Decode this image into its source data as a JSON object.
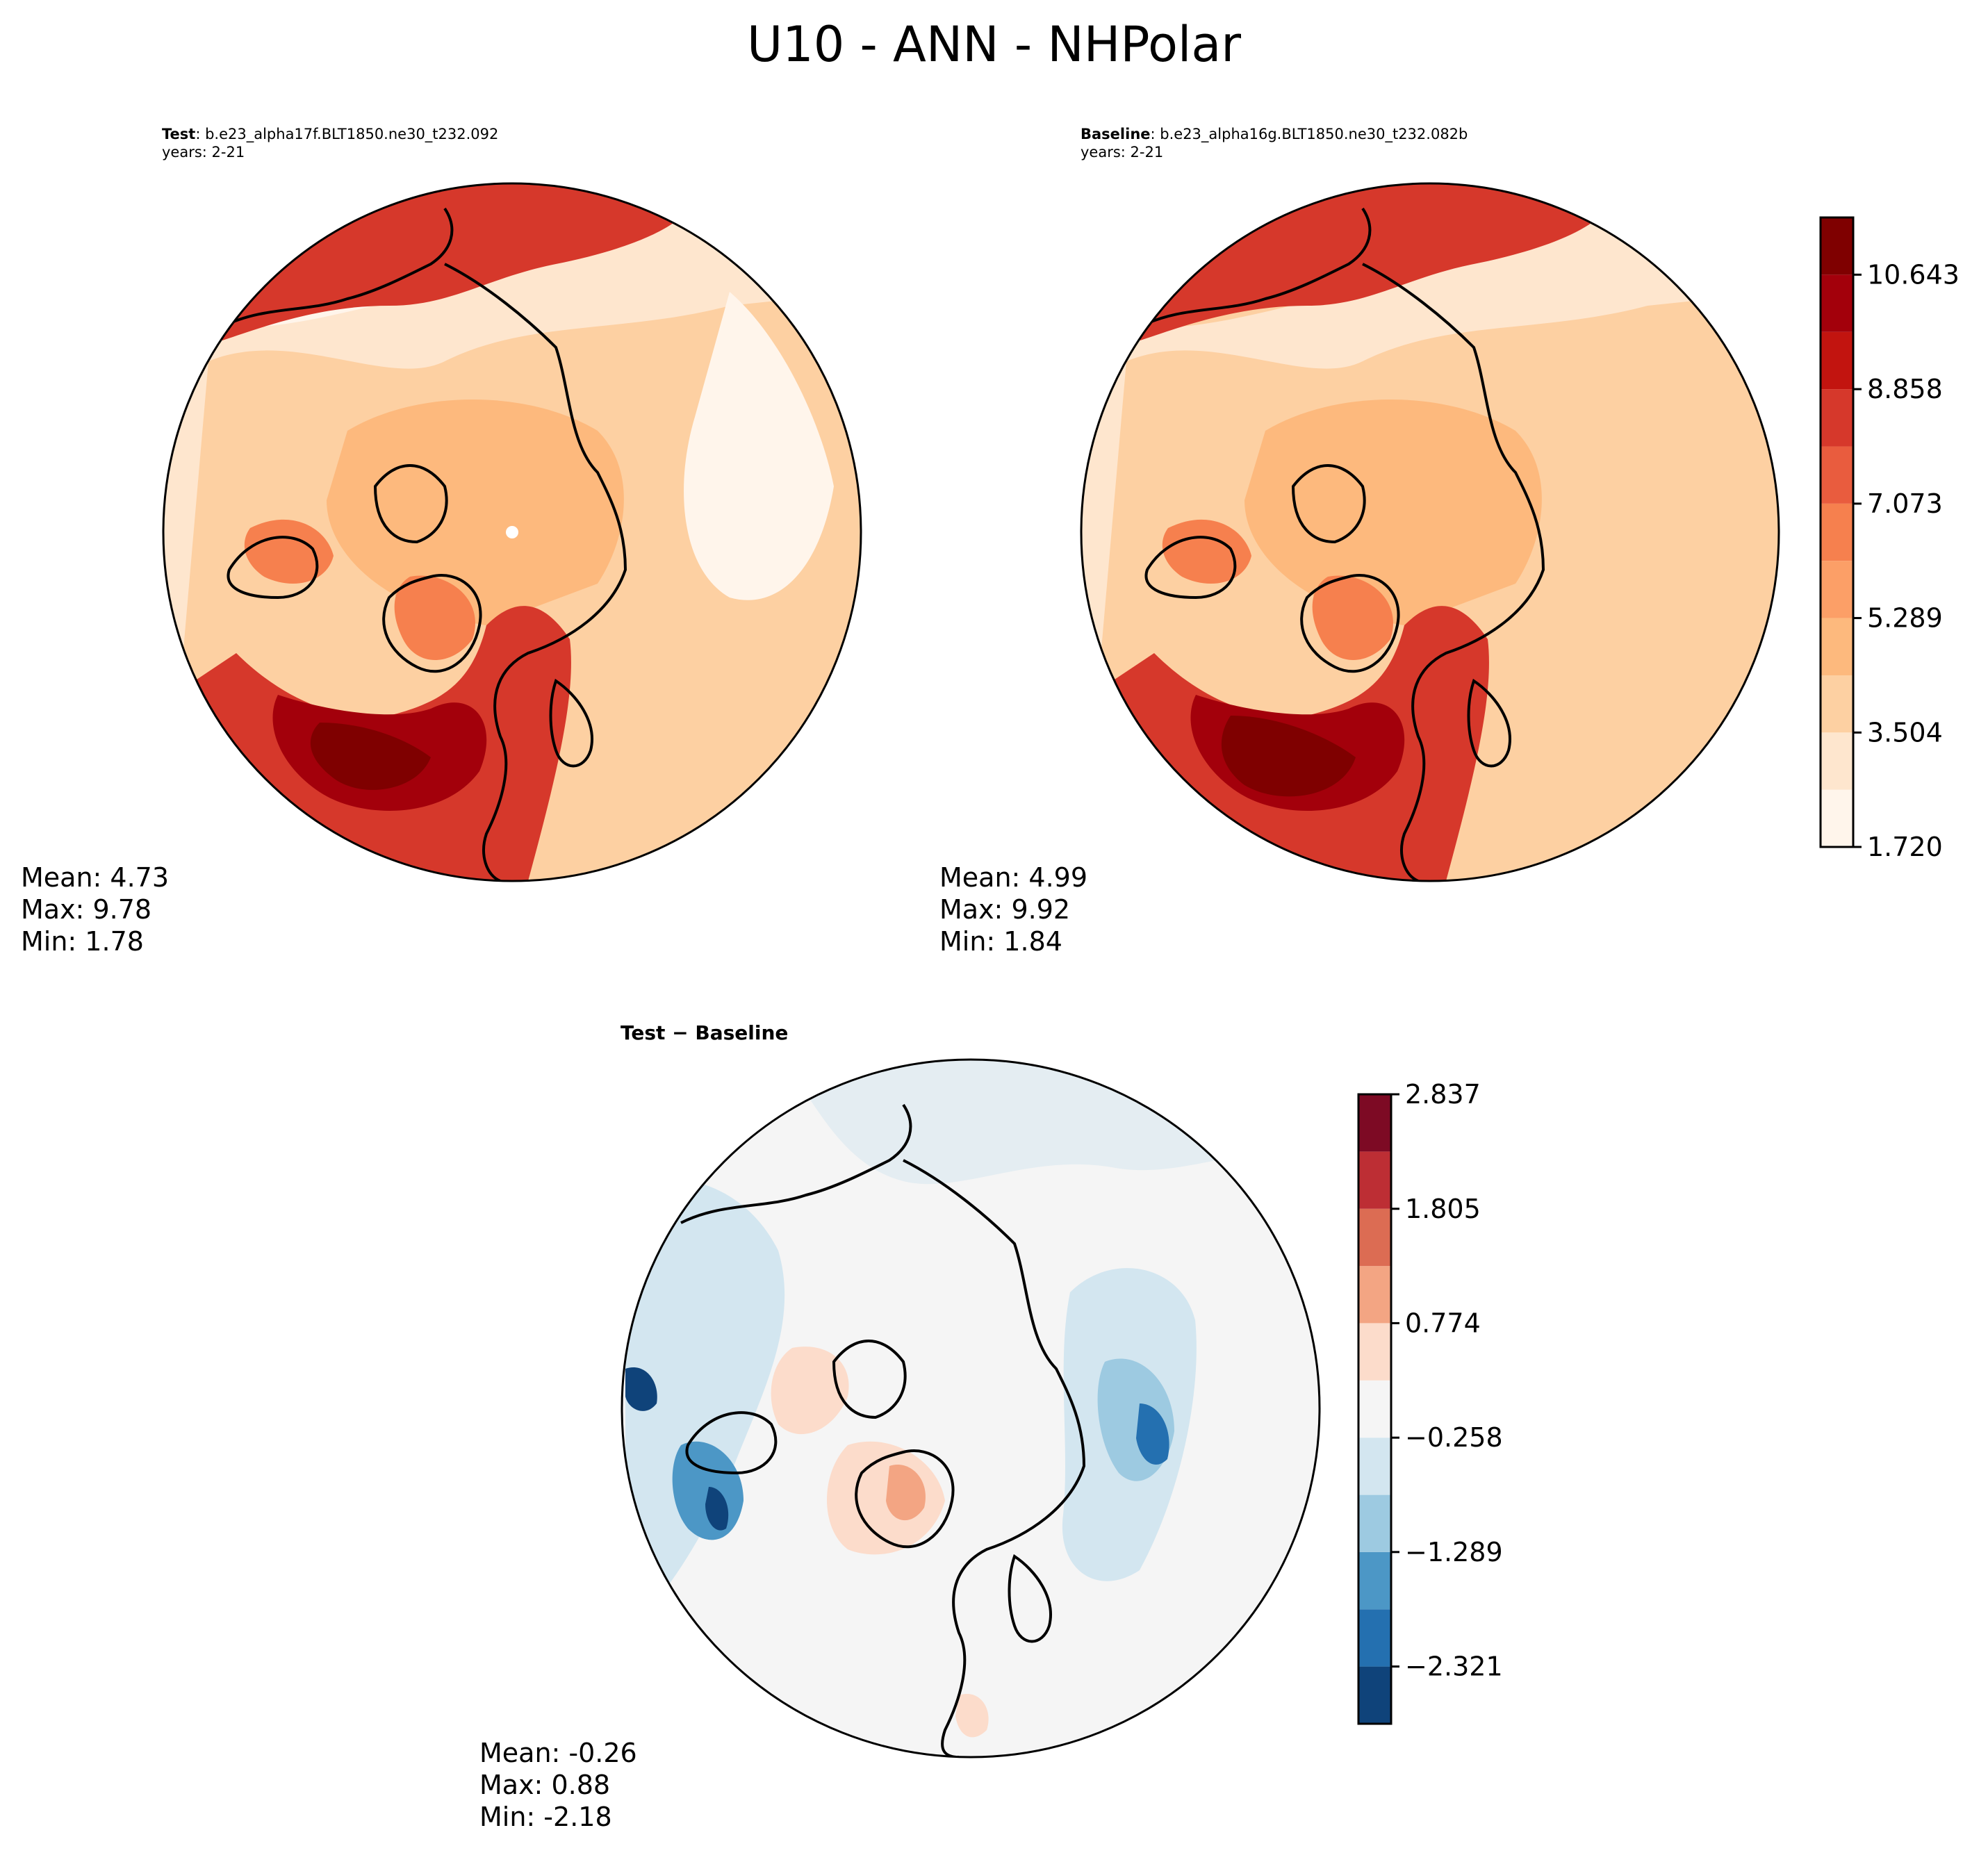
{
  "title": "U10 - ANN - NHPolar",
  "panels": {
    "test": {
      "label_bold": "Test",
      "label_rest": ": b.e23_alpha17f.BLT1850.ne30_t232.092",
      "years": "years: 2-21",
      "mean": "Mean:  4.73",
      "max": "Max:  9.78",
      "min": "Min:  1.78"
    },
    "baseline": {
      "label_bold": "Baseline",
      "label_rest": ": b.e23_alpha16g.BLT1850.ne30_t232.082b",
      "years": "years: 2-21",
      "mean": "Mean:  4.99",
      "max": "Max:  9.92",
      "min": "Min:  1.84"
    },
    "diff": {
      "title": "Test − Baseline",
      "mean": "Mean: -0.26",
      "max": "Max:  0.88",
      "min": "Min: -2.18"
    }
  },
  "chart_data": [
    {
      "type": "heatmap",
      "title": "Test : b.e23_alpha17f.BLT1850.ne30_t232.092",
      "projection": "NH polar stereographic",
      "variable": "U10",
      "colorbar": {
        "levels": [
          1.72,
          2.612,
          3.504,
          4.396,
          5.289,
          6.181,
          7.073,
          7.965,
          8.858,
          9.75,
          10.643,
          11.535
        ],
        "tick_labels": [
          "1.720",
          "3.504",
          "5.289",
          "7.073",
          "8.858",
          "10.643"
        ],
        "colors": [
          "#fff5eb",
          "#fee6ce",
          "#fdd0a2",
          "#fdb97d",
          "#fc9f67",
          "#f6804e",
          "#e95c3e",
          "#d6382b",
          "#c2140f",
          "#a3000b",
          "#7f0000"
        ]
      }
    },
    {
      "type": "heatmap",
      "title": "Baseline : b.e23_alpha16g.BLT1850.ne30_t232.082b",
      "projection": "NH polar stereographic",
      "variable": "U10"
    },
    {
      "type": "heatmap",
      "title": "Test − Baseline",
      "projection": "NH polar stereographic",
      "colorbar": {
        "levels": [
          -2.837,
          -2.321,
          -1.805,
          -1.289,
          -0.774,
          -0.258,
          0.258,
          0.774,
          1.289,
          1.805,
          2.321,
          2.837
        ],
        "tick_labels": [
          "−2.321",
          "−1.289",
          "−0.258",
          "0.774",
          "1.805",
          "2.837"
        ],
        "colors": [
          "#0f437a",
          "#2470b0",
          "#4c97c6",
          "#9dcae1",
          "#d3e6f0",
          "#f5f5f5",
          "#fcdccb",
          "#f3a583",
          "#dc6c53",
          "#bd2e34",
          "#7d0a24"
        ]
      }
    }
  ]
}
